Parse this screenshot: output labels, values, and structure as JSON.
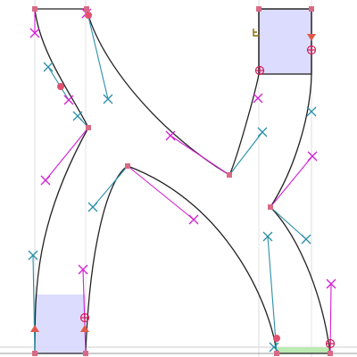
{
  "editor": {
    "glyph_name": "glyph-outline",
    "colors": {
      "background": "#ffffff",
      "guide_line": "#d9d9d9",
      "baseline": "#9a9a9a",
      "outline_stroke": "#222222",
      "fill_inside": "#ffffff",
      "selection_fill": "#c9c9ff",
      "baseline_band": "#a6e39a",
      "handle_teal": "#2a8fa8",
      "handle_magenta": "#d21fd2",
      "on_curve_point": "#e0526f",
      "off_curve_point": "#e0526f",
      "warning_marker": "#8a6a00"
    },
    "icons": {
      "corner_point": "square-point-icon",
      "curve_point": "circle-point-icon",
      "control_handle": "cross-handle-icon",
      "tangent_point": "circled-plus-icon",
      "start_point": "triangle-start-icon",
      "hint_marker": "hook-marker-icon"
    }
  }
}
